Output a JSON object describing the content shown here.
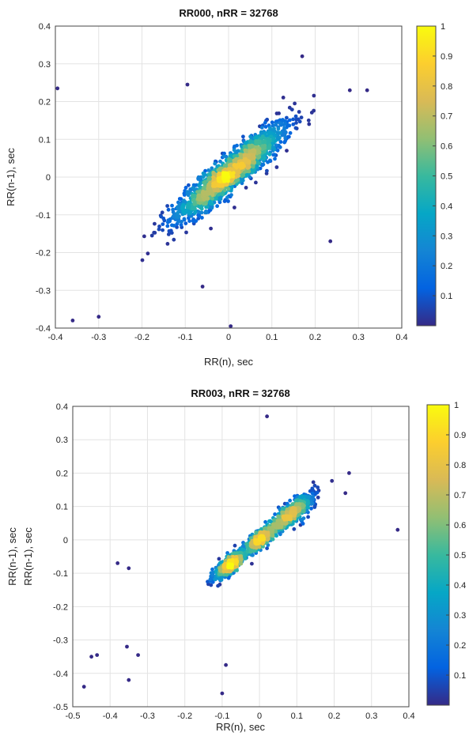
{
  "chart_data": [
    {
      "type": "scatter",
      "title": "RR000, nRR = 32768",
      "xlabel": "RR(n), sec",
      "ylabel": "RR(n-1), sec",
      "xlim": [
        -0.4,
        0.4
      ],
      "ylim": [
        -0.4,
        0.4
      ],
      "xticks": [
        "-0.4",
        "-0.3",
        "-0.2",
        "-0.1",
        "0",
        "0.1",
        "0.2",
        "0.3",
        "0.4"
      ],
      "yticks": [
        "-0.4",
        "-0.3",
        "-0.2",
        "-0.1",
        "0",
        "0.1",
        "0.2",
        "0.3",
        "0.4"
      ],
      "grid": true,
      "colorbar": {
        "colormap": "parula",
        "range": [
          0,
          1
        ],
        "ticks": [
          "0.1",
          "0.2",
          "0.3",
          "0.4",
          "0.5",
          "0.6",
          "0.7",
          "0.8",
          "0.9",
          "1"
        ]
      },
      "density_clusters": [
        {
          "cx": 0.04,
          "cy": 0.045,
          "sx": 0.095,
          "sy": 0.095,
          "rho": 0.86,
          "n": 900
        },
        {
          "cx": -0.04,
          "cy": -0.03,
          "sx": 0.09,
          "sy": 0.09,
          "rho": 0.86,
          "n": 700
        }
      ],
      "outliers": [
        [
          -0.395,
          0.235
        ],
        [
          -0.095,
          0.245
        ],
        [
          0.17,
          0.32
        ],
        [
          0.32,
          0.23
        ],
        [
          0.235,
          -0.17
        ],
        [
          0.005,
          -0.395
        ],
        [
          -0.06,
          -0.29
        ],
        [
          -0.36,
          -0.38
        ],
        [
          -0.3,
          -0.37
        ],
        [
          0.28,
          0.23
        ]
      ]
    },
    {
      "type": "scatter",
      "title": "RR003, nRR = 32768",
      "xlabel": "RR(n), sec",
      "ylabel": "RR(n-1), sec",
      "xlim": [
        -0.5,
        0.4
      ],
      "ylim": [
        -0.5,
        0.4
      ],
      "xticks": [
        "-0.5",
        "-0.4",
        "-0.3",
        "-0.2",
        "-0.1",
        "0",
        "0.1",
        "0.2",
        "0.3",
        "0.4"
      ],
      "yticks": [
        "-0.5",
        "-0.4",
        "-0.3",
        "-0.2",
        "-0.1",
        "0",
        "0.1",
        "0.2",
        "0.3",
        "0.4"
      ],
      "grid": true,
      "colorbar": {
        "colormap": "parula",
        "range": [
          0,
          1
        ],
        "ticks": [
          "0.1",
          "0.2",
          "0.3",
          "0.4",
          "0.5",
          "0.6",
          "0.7",
          "0.8",
          "0.9",
          "1"
        ]
      },
      "density_clusters": [
        {
          "cx": -0.08,
          "cy": -0.075,
          "sx": 0.04,
          "sy": 0.04,
          "rho": 0.8,
          "n": 500
        },
        {
          "cx": 0.0,
          "cy": 0.0,
          "sx": 0.04,
          "sy": 0.04,
          "rho": 0.8,
          "n": 450
        },
        {
          "cx": 0.08,
          "cy": 0.075,
          "sx": 0.055,
          "sy": 0.055,
          "rho": 0.82,
          "n": 650
        }
      ],
      "outliers": [
        [
          0.02,
          0.37
        ],
        [
          0.37,
          0.03
        ],
        [
          -0.38,
          -0.07
        ],
        [
          -0.35,
          -0.085
        ],
        [
          -0.45,
          -0.35
        ],
        [
          -0.435,
          -0.345
        ],
        [
          -0.355,
          -0.32
        ],
        [
          -0.325,
          -0.345
        ],
        [
          -0.35,
          -0.42
        ],
        [
          -0.47,
          -0.44
        ],
        [
          -0.1,
          -0.46
        ],
        [
          -0.09,
          -0.375
        ],
        [
          0.24,
          0.2
        ],
        [
          0.23,
          0.14
        ]
      ]
    }
  ]
}
